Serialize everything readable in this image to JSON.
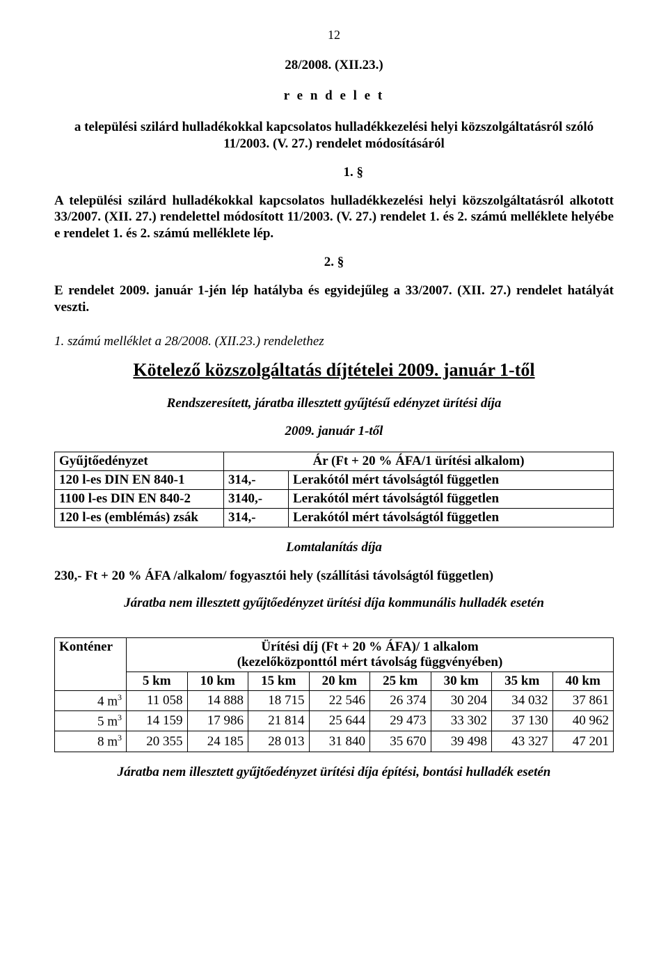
{
  "page_number": "12",
  "decree_number": "28/2008. (XII.23.)",
  "rendelet_word": "r e n d e l e t",
  "title_para": "a települési szilárd hulladékokkal kapcsolatos hulladékkezelési helyi közszolgáltatásról szóló 11/2003. (V. 27.) rendelet módosításáról",
  "section1_label": "1. §",
  "section1_text": "A települési szilárd hulladékokkal kapcsolatos hulladékkezelési helyi közszolgáltatásról alkotott 33/2007. (XII. 27.) rendelettel módosított 11/2003. (V. 27.) rendelet 1. és 2. számú melléklete helyébe e rendelet 1. és 2. számú melléklete lép.",
  "section2_label": "2. §",
  "section2_text": "E rendelet 2009. január 1-jén lép hatályba és egyidejűleg a 33/2007. (XII. 27.) rendelet hatályát veszti.",
  "annex_ref": "1. számú melléklet a 28/2008. (XII.23.) rendelethez",
  "main_title": "Kötelező közszolgáltatás díjtételei 2009. január 1-től",
  "subtitle1": "Rendszeresített, járatba illesztett gyűjtésű edényzet ürítési díja",
  "date_line": "2009. január 1-től",
  "price_table": {
    "header_left": "Gyűjtőedényzet",
    "header_right": "Ár (Ft + 20 % ÁFA/1 ürítési alkalom)",
    "rows": [
      {
        "name": "120 l-es DIN EN 840-1",
        "price": "314,-",
        "note": "Lerakótól mért távolságtól független"
      },
      {
        "name": "1100 l-es DIN EN 840-2",
        "price": "3140,-",
        "note": "Lerakótól mért távolságtól független"
      },
      {
        "name": "120 l-es (emblémás) zsák",
        "price": "314,-",
        "note": "Lerakótól mért távolságtól független"
      }
    ]
  },
  "lomtalanitas_title": "Lomtalanítás díja",
  "lomtalanitas_text": "230,- Ft + 20 % ÁFA /alkalom/ fogyasztói hely (szállítási távolságtól független)",
  "nonroute_title": "Járatba nem illesztett gyűjtőedényzet ürítési díja kommunális hulladék esetén",
  "dist_table": {
    "header_label": "Konténer",
    "header_title": "Ürítési díj (Ft + 20 % ÁFA)/ 1 alkalom",
    "header_sub": "(kezelőközponttól mért távolság függvényében)",
    "columns": [
      "5 km",
      "10 km",
      "15 km",
      "20 km",
      "25 km",
      "30 km",
      "35 km",
      "40 km"
    ],
    "rows": [
      {
        "label": "4 m",
        "sup": "3",
        "values": [
          "11 058",
          "14 888",
          "18 715",
          "22 546",
          "26 374",
          "30 204",
          "34 032",
          "37 861"
        ]
      },
      {
        "label": "5 m",
        "sup": "3",
        "values": [
          "14 159",
          "17 986",
          "21 814",
          "25 644",
          "29 473",
          "33 302",
          "37 130",
          "40 962"
        ]
      },
      {
        "label": "8 m",
        "sup": "3",
        "values": [
          "20 355",
          "24 185",
          "28 013",
          "31 840",
          "35 670",
          "39 498",
          "43 327",
          "47 201"
        ]
      }
    ]
  },
  "footer_line": "Járatba nem illesztett gyűjtőedényzet ürítési díja építési, bontási hulladék esetén",
  "colors": {
    "text": "#000000",
    "bg": "#ffffff",
    "border": "#000000"
  },
  "typography": {
    "body_font": "Times New Roman",
    "body_size_pt": 14,
    "title_size_pt": 20
  }
}
